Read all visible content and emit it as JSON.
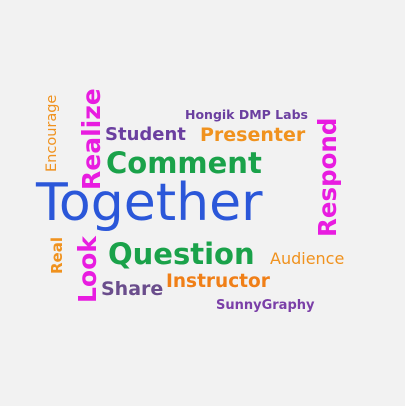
{
  "words": {
    "together": "Together",
    "comment": "Comment",
    "question": "Question",
    "student": "Student",
    "presenter": "Presenter",
    "hongik": "Hongik DMP Labs",
    "share": "Share",
    "instructor": "Instructor",
    "audience": "Audience",
    "sunny": "SunnyGraphy",
    "encourage": "Encourage",
    "realize": "Realize",
    "real": "Real",
    "look": "Look",
    "respond": "Respond"
  },
  "colors": {
    "background": "#f2f2f2",
    "blue": "#2b57d9",
    "green": "#1aa24a",
    "purple": "#6b3fa0",
    "orange": "#f0921e",
    "magenta": "#e81ce0"
  }
}
